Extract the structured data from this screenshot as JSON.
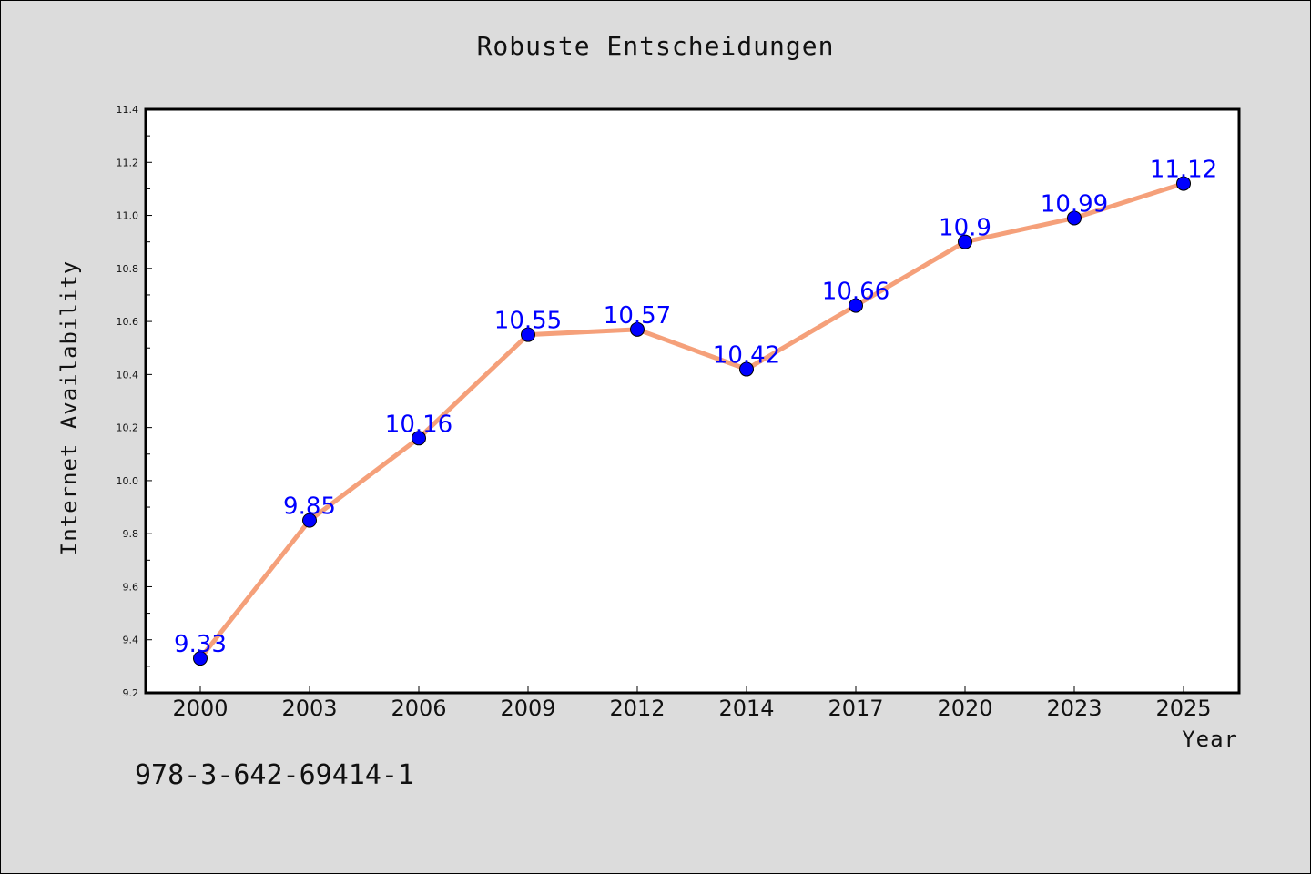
{
  "chart_data": {
    "type": "line",
    "title": "Robuste Entscheidungen",
    "xlabel": "Year",
    "ylabel": "Internet Availability",
    "categories": [
      "2000",
      "2003",
      "2006",
      "2009",
      "2012",
      "2014",
      "2017",
      "2020",
      "2023",
      "2025"
    ],
    "series": [
      {
        "values": [
          9.33,
          9.85,
          10.16,
          10.55,
          10.57,
          10.42,
          10.66,
          10.9,
          10.99,
          11.12
        ],
        "line_color": "#f5a07a",
        "marker_color": "#0000ff"
      }
    ],
    "data_labels": [
      "9.33",
      "9.85",
      "10.16",
      "10.55",
      "10.57",
      "10.42",
      "10.66",
      "10.9",
      "10.99",
      "11.12"
    ],
    "ylim": [
      9.2,
      11.4
    ],
    "yticks": [
      "9.2",
      "9.4",
      "9.6",
      "9.8",
      "10.0",
      "10.2",
      "10.4",
      "10.6",
      "10.8",
      "11.0",
      "11.2",
      "11.4"
    ],
    "grid": false,
    "legend": "none"
  },
  "footer": {
    "isbn": "978-3-642-69414-1"
  },
  "colors": {
    "background": "#dcdcdc",
    "plot_background": "#ffffff",
    "line": "#f5a07a",
    "marker": "#0000ff",
    "data_label": "#0000ff"
  }
}
